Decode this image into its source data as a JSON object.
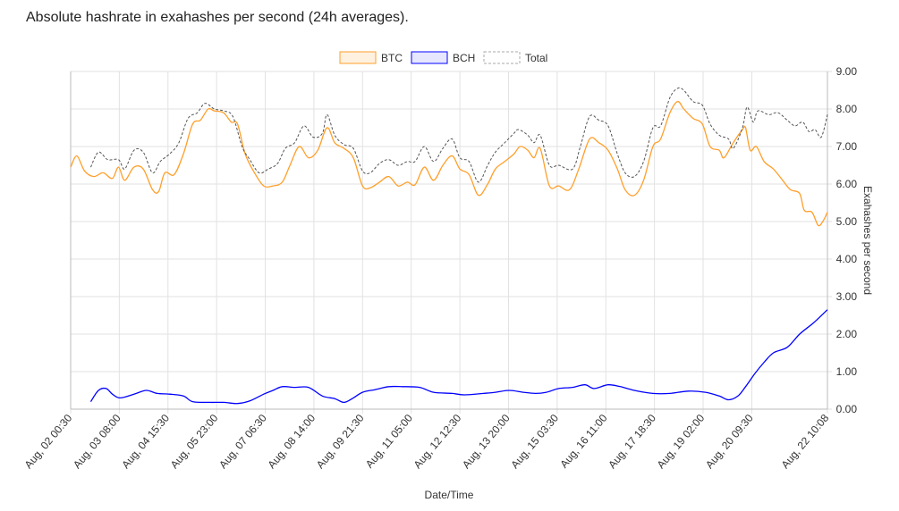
{
  "chart_data": {
    "type": "line",
    "title": "Absolute hashrate in exahashes per second (24h averages).",
    "xlabel": "Date/Time",
    "ylabel": "Exahashes per second",
    "x_units": "hours since Aug, 02 00:30",
    "xlim": [
      0,
      490
    ],
    "ylim": [
      0,
      9
    ],
    "y_ticks": [
      "0.00",
      "1.00",
      "2.00",
      "3.00",
      "4.00",
      "5.00",
      "6.00",
      "7.00",
      "8.00",
      "9.00"
    ],
    "x_ticks": [
      {
        "h": 0,
        "label": "Aug, 02 00:30"
      },
      {
        "h": 31.5,
        "label": "Aug, 03 08:00"
      },
      {
        "h": 63,
        "label": "Aug, 04 15:30"
      },
      {
        "h": 94.5,
        "label": "Aug, 05 23:00"
      },
      {
        "h": 126,
        "label": "Aug, 07 06:30"
      },
      {
        "h": 157.5,
        "label": "Aug, 08 14:00"
      },
      {
        "h": 189,
        "label": "Aug, 09 21:30"
      },
      {
        "h": 220.5,
        "label": "Aug, 11 05:00"
      },
      {
        "h": 252,
        "label": "Aug, 12 12:30"
      },
      {
        "h": 283.5,
        "label": "Aug, 13 20:00"
      },
      {
        "h": 315,
        "label": "Aug, 15 03:30"
      },
      {
        "h": 346.5,
        "label": "Aug, 16 11:00"
      },
      {
        "h": 378,
        "label": "Aug, 17 18:30"
      },
      {
        "h": 409.5,
        "label": "Aug, 19 02:00"
      },
      {
        "h": 441,
        "label": "Aug, 20 09:30"
      },
      {
        "h": 490,
        "label": "Aug, 22 10:08"
      }
    ],
    "grid": true,
    "legend_position": "top-center",
    "series": [
      {
        "name": "BTC",
        "color": "#ff9f2a",
        "fill": "#fff1e0",
        "dashed": false,
        "points": [
          [
            0,
            6.45
          ],
          [
            4,
            6.75
          ],
          [
            9,
            6.35
          ],
          [
            15,
            6.2
          ],
          [
            21,
            6.3
          ],
          [
            27,
            6.15
          ],
          [
            31,
            6.45
          ],
          [
            35,
            6.1
          ],
          [
            41,
            6.45
          ],
          [
            47,
            6.4
          ],
          [
            53,
            5.85
          ],
          [
            57,
            5.8
          ],
          [
            61,
            6.3
          ],
          [
            67,
            6.25
          ],
          [
            73,
            6.8
          ],
          [
            79,
            7.6
          ],
          [
            84,
            7.7
          ],
          [
            89,
            8.0
          ],
          [
            93,
            7.95
          ],
          [
            99,
            7.9
          ],
          [
            104,
            7.65
          ],
          [
            108,
            7.6
          ],
          [
            113,
            6.8
          ],
          [
            119,
            6.3
          ],
          [
            125,
            5.95
          ],
          [
            131,
            5.95
          ],
          [
            137,
            6.05
          ],
          [
            142,
            6.5
          ],
          [
            148,
            7.0
          ],
          [
            154,
            6.7
          ],
          [
            160,
            6.9
          ],
          [
            166,
            7.5
          ],
          [
            171,
            7.1
          ],
          [
            177,
            6.95
          ],
          [
            183,
            6.7
          ],
          [
            189,
            5.95
          ],
          [
            194,
            5.9
          ],
          [
            200,
            6.05
          ],
          [
            206,
            6.2
          ],
          [
            212,
            5.95
          ],
          [
            218,
            6.05
          ],
          [
            223,
            5.98
          ],
          [
            229,
            6.45
          ],
          [
            235,
            6.1
          ],
          [
            241,
            6.5
          ],
          [
            247,
            6.75
          ],
          [
            252,
            6.4
          ],
          [
            258,
            6.25
          ],
          [
            264,
            5.7
          ],
          [
            270,
            6.0
          ],
          [
            275,
            6.4
          ],
          [
            281,
            6.6
          ],
          [
            287,
            6.8
          ],
          [
            291,
            7.0
          ],
          [
            296,
            6.9
          ],
          [
            300,
            6.7
          ],
          [
            304,
            6.95
          ],
          [
            310,
            5.95
          ],
          [
            316,
            5.95
          ],
          [
            323,
            5.85
          ],
          [
            329,
            6.4
          ],
          [
            336,
            7.2
          ],
          [
            342,
            7.1
          ],
          [
            348,
            6.9
          ],
          [
            354,
            6.4
          ],
          [
            359,
            5.85
          ],
          [
            365,
            5.7
          ],
          [
            371,
            6.1
          ],
          [
            377,
            7.0
          ],
          [
            382,
            7.2
          ],
          [
            388,
            7.9
          ],
          [
            393,
            8.2
          ],
          [
            397,
            8.0
          ],
          [
            403,
            7.75
          ],
          [
            409,
            7.6
          ],
          [
            414,
            7.0
          ],
          [
            420,
            6.9
          ],
          [
            423,
            6.7
          ],
          [
            429,
            7.1
          ],
          [
            435,
            7.45
          ],
          [
            437,
            7.5
          ],
          [
            440,
            6.9
          ],
          [
            444,
            7.0
          ],
          [
            449,
            6.6
          ],
          [
            455,
            6.4
          ],
          [
            461,
            6.1
          ],
          [
            466,
            5.85
          ],
          [
            472,
            5.75
          ],
          [
            475,
            5.3
          ],
          [
            480,
            5.25
          ],
          [
            484,
            4.9
          ],
          [
            487,
            5.0
          ],
          [
            490,
            5.25
          ]
        ]
      },
      {
        "name": "BCH",
        "color": "#0000ff",
        "fill": "#e6e6ff",
        "dashed": false,
        "points": [
          [
            13,
            0.2
          ],
          [
            18,
            0.5
          ],
          [
            23,
            0.55
          ],
          [
            27,
            0.4
          ],
          [
            32,
            0.3
          ],
          [
            41,
            0.4
          ],
          [
            49,
            0.5
          ],
          [
            56,
            0.42
          ],
          [
            64,
            0.4
          ],
          [
            73,
            0.35
          ],
          [
            79,
            0.2
          ],
          [
            90,
            0.18
          ],
          [
            99,
            0.18
          ],
          [
            108,
            0.15
          ],
          [
            116,
            0.22
          ],
          [
            125,
            0.4
          ],
          [
            131,
            0.5
          ],
          [
            137,
            0.6
          ],
          [
            145,
            0.58
          ],
          [
            154,
            0.58
          ],
          [
            163,
            0.35
          ],
          [
            171,
            0.28
          ],
          [
            177,
            0.18
          ],
          [
            183,
            0.3
          ],
          [
            189,
            0.45
          ],
          [
            197,
            0.52
          ],
          [
            206,
            0.6
          ],
          [
            215,
            0.6
          ],
          [
            226,
            0.58
          ],
          [
            235,
            0.45
          ],
          [
            247,
            0.42
          ],
          [
            255,
            0.38
          ],
          [
            267,
            0.42
          ],
          [
            275,
            0.45
          ],
          [
            284,
            0.5
          ],
          [
            293,
            0.45
          ],
          [
            301,
            0.42
          ],
          [
            308,
            0.45
          ],
          [
            316,
            0.55
          ],
          [
            325,
            0.58
          ],
          [
            333,
            0.65
          ],
          [
            339,
            0.55
          ],
          [
            348,
            0.65
          ],
          [
            356,
            0.6
          ],
          [
            365,
            0.5
          ],
          [
            377,
            0.42
          ],
          [
            388,
            0.42
          ],
          [
            400,
            0.48
          ],
          [
            411,
            0.45
          ],
          [
            420,
            0.35
          ],
          [
            426,
            0.25
          ],
          [
            432,
            0.35
          ],
          [
            437,
            0.6
          ],
          [
            443,
            0.95
          ],
          [
            449,
            1.25
          ],
          [
            455,
            1.5
          ],
          [
            464,
            1.65
          ],
          [
            472,
            2.0
          ],
          [
            481,
            2.3
          ],
          [
            490,
            2.65
          ]
        ]
      },
      {
        "name": "Total",
        "color": "#555555",
        "fill": "#ffffff",
        "dashed": true,
        "points": [
          [
            13,
            6.45
          ],
          [
            18,
            6.85
          ],
          [
            24,
            6.65
          ],
          [
            31,
            6.65
          ],
          [
            35,
            6.4
          ],
          [
            41,
            6.9
          ],
          [
            47,
            6.85
          ],
          [
            53,
            6.3
          ],
          [
            58,
            6.6
          ],
          [
            64,
            6.8
          ],
          [
            70,
            7.1
          ],
          [
            76,
            7.75
          ],
          [
            82,
            7.9
          ],
          [
            87,
            8.15
          ],
          [
            93,
            8.0
          ],
          [
            99,
            7.95
          ],
          [
            105,
            7.8
          ],
          [
            111,
            7.0
          ],
          [
            116,
            6.65
          ],
          [
            122,
            6.3
          ],
          [
            128,
            6.4
          ],
          [
            134,
            6.55
          ],
          [
            139,
            6.95
          ],
          [
            145,
            7.1
          ],
          [
            151,
            7.55
          ],
          [
            157,
            7.25
          ],
          [
            163,
            7.35
          ],
          [
            166,
            7.85
          ],
          [
            171,
            7.3
          ],
          [
            177,
            7.05
          ],
          [
            183,
            6.95
          ],
          [
            189,
            6.35
          ],
          [
            194,
            6.3
          ],
          [
            200,
            6.55
          ],
          [
            206,
            6.65
          ],
          [
            212,
            6.5
          ],
          [
            218,
            6.6
          ],
          [
            223,
            6.6
          ],
          [
            229,
            7.0
          ],
          [
            235,
            6.6
          ],
          [
            241,
            6.95
          ],
          [
            247,
            7.2
          ],
          [
            252,
            6.7
          ],
          [
            258,
            6.6
          ],
          [
            264,
            6.05
          ],
          [
            270,
            6.5
          ],
          [
            275,
            6.85
          ],
          [
            281,
            7.1
          ],
          [
            287,
            7.35
          ],
          [
            290,
            7.45
          ],
          [
            296,
            7.3
          ],
          [
            300,
            7.1
          ],
          [
            304,
            7.3
          ],
          [
            310,
            6.5
          ],
          [
            316,
            6.5
          ],
          [
            325,
            6.4
          ],
          [
            330,
            7.0
          ],
          [
            336,
            7.8
          ],
          [
            342,
            7.7
          ],
          [
            348,
            7.55
          ],
          [
            354,
            6.8
          ],
          [
            359,
            6.3
          ],
          [
            365,
            6.2
          ],
          [
            371,
            6.6
          ],
          [
            377,
            7.5
          ],
          [
            382,
            7.55
          ],
          [
            388,
            8.3
          ],
          [
            393,
            8.55
          ],
          [
            397,
            8.5
          ],
          [
            403,
            8.2
          ],
          [
            409,
            8.1
          ],
          [
            414,
            7.6
          ],
          [
            420,
            7.3
          ],
          [
            426,
            7.2
          ],
          [
            429,
            6.95
          ],
          [
            435,
            7.5
          ],
          [
            438,
            8.05
          ],
          [
            442,
            7.65
          ],
          [
            445,
            7.95
          ],
          [
            452,
            7.85
          ],
          [
            458,
            7.9
          ],
          [
            464,
            7.7
          ],
          [
            469,
            7.55
          ],
          [
            474,
            7.65
          ],
          [
            478,
            7.4
          ],
          [
            482,
            7.45
          ],
          [
            486,
            7.25
          ],
          [
            490,
            7.85
          ]
        ]
      }
    ]
  }
}
